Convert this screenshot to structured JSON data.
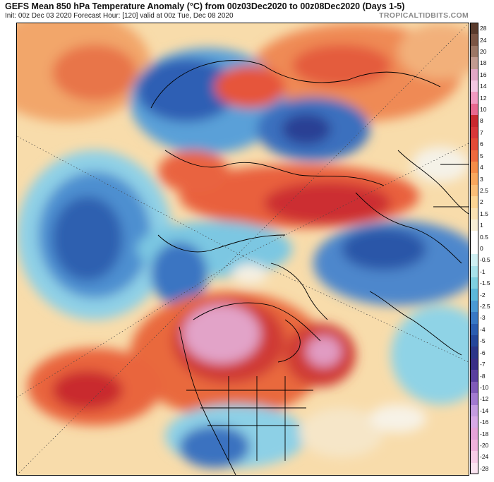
{
  "header": {
    "title": "GEFS Mean 850 hPa Temperature Anomaly (°C) from 00z03Dec2020 to 00z08Dec2020 (Days 1-5)",
    "subtitle": "Init: 00z Dec 03 2020   Forecast Hour: [120]   valid at 00z Tue, Dec 08 2020",
    "credit": "TROPICALTIDBITS.COM"
  },
  "colorbar": {
    "labels": [
      "28",
      "24",
      "20",
      "18",
      "16",
      "14",
      "12",
      "10",
      "8",
      "7",
      "6",
      "5",
      "4",
      "3",
      "2.5",
      "2",
      "1.5",
      "1",
      "0.5",
      "0",
      "-0.5",
      "-1",
      "-1.5",
      "-2",
      "-2.5",
      "-3",
      "-4",
      "-5",
      "-6",
      "-7",
      "-8",
      "-10",
      "-12",
      "-14",
      "-16",
      "-18",
      "-20",
      "-24",
      "-28"
    ],
    "colors": [
      "#5a3b2c",
      "#7b5544",
      "#9c7766",
      "#c29b91",
      "#e2a7c6",
      "#f3c8e2",
      "#f29bc1",
      "#e8688f",
      "#c9292f",
      "#d8383a",
      "#e34b37",
      "#ee6a3e",
      "#f58c48",
      "#f9a75d",
      "#fbbe77",
      "#fdd593",
      "#fbe2b3",
      "#f7eed6",
      "#ffffff",
      "#ffffff",
      "#cfeff2",
      "#a8e2ea",
      "#7fd0e0",
      "#5cb8da",
      "#4a99d3",
      "#3878c4",
      "#2b5db0",
      "#25479a",
      "#2c3688",
      "#3a2f86",
      "#5a3f9e",
      "#7f5ab8",
      "#a27ad0",
      "#c49ce0",
      "#d7a9e6",
      "#e5a2d8",
      "#f0b2dc",
      "#f8cde8",
      "#fbe4f1"
    ]
  },
  "map": {
    "name": "850 hPa temperature anomaly north polar stereographic map"
  }
}
